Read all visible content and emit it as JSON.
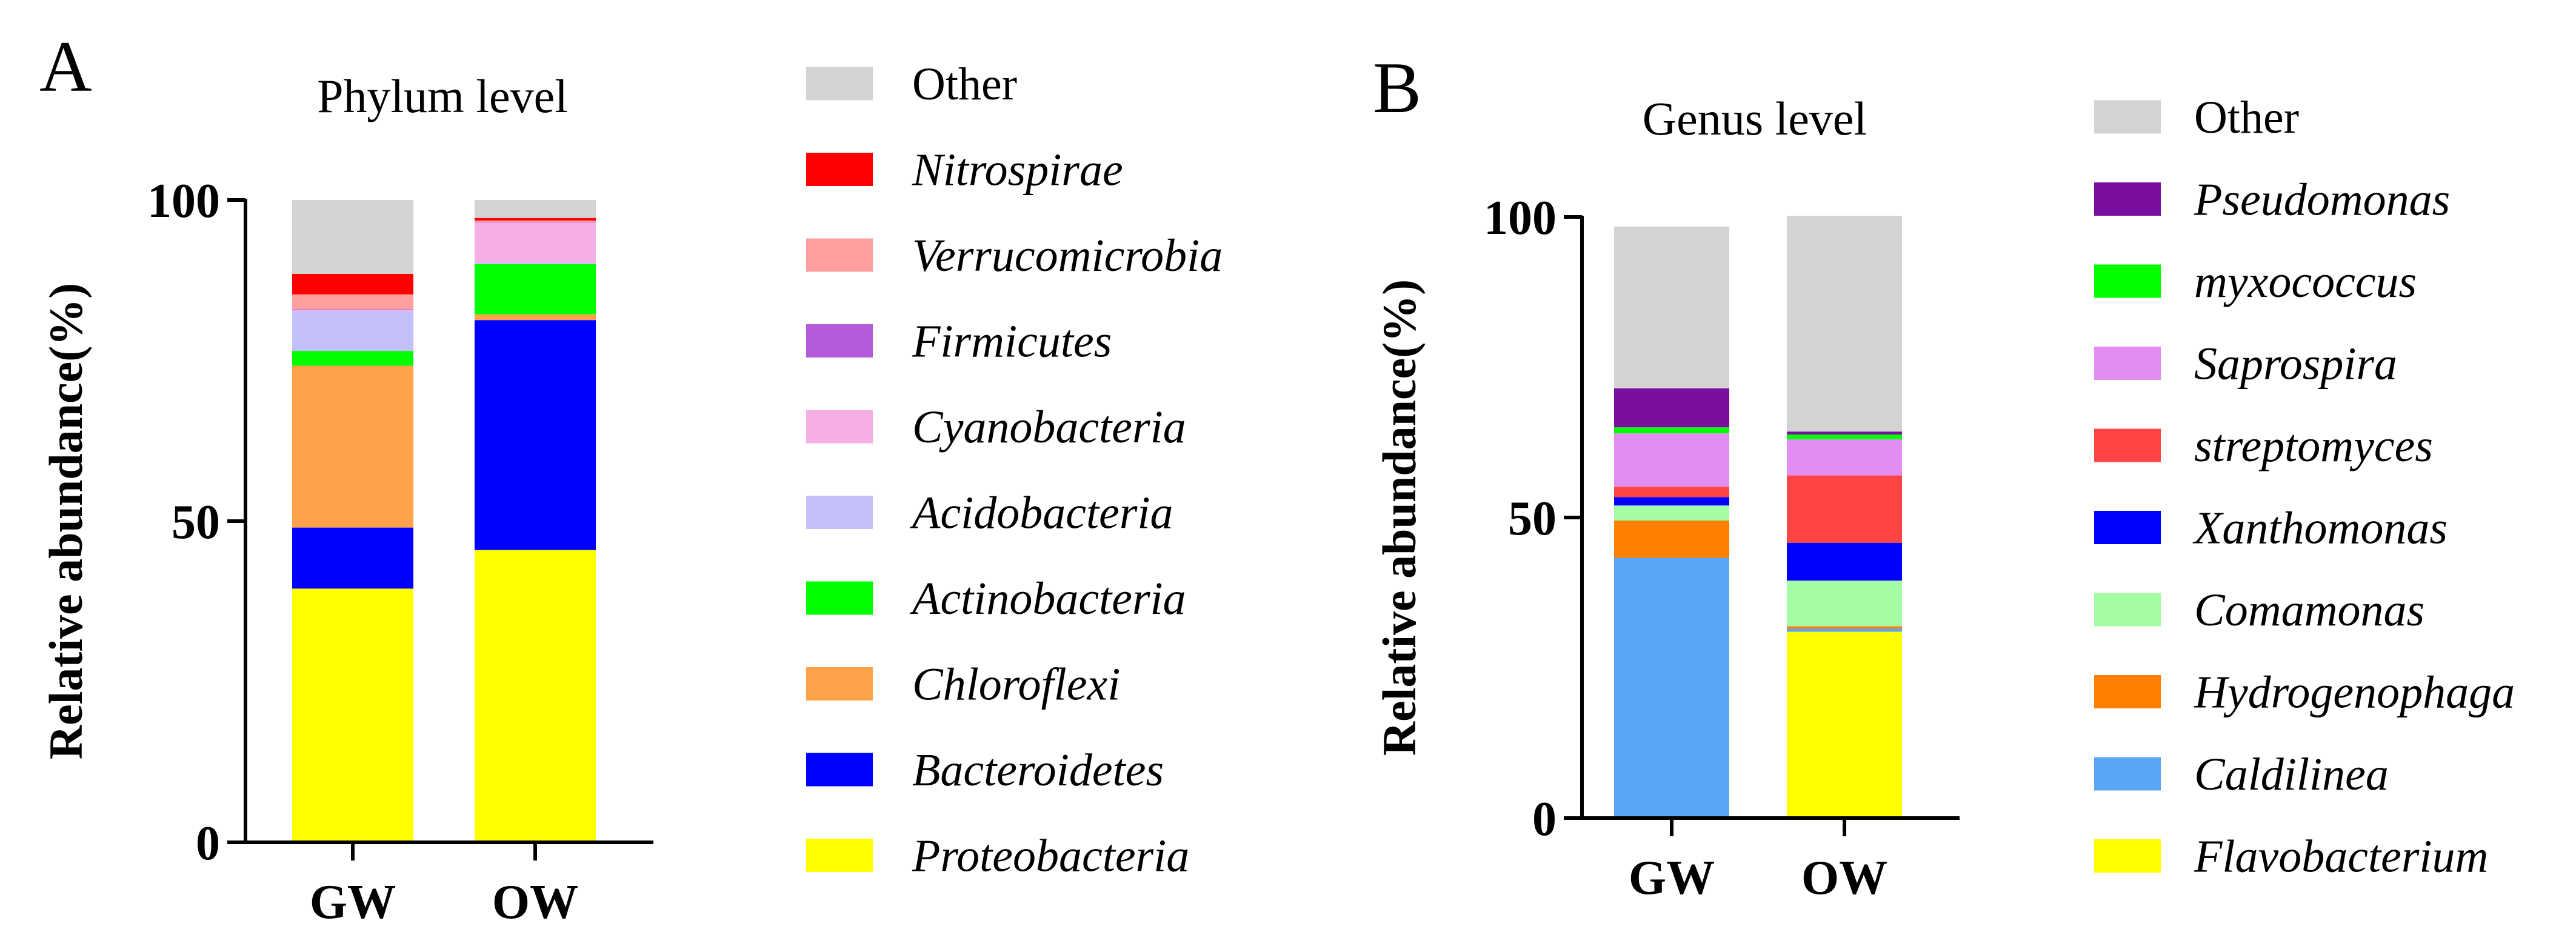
{
  "chart_data": [
    {
      "panel": "A",
      "type": "bar",
      "stacked": true,
      "title": "Phylum level",
      "xlabel": "",
      "ylabel": "Relative abundance(%)",
      "ylim": [
        0,
        100
      ],
      "yticks": [
        0,
        50,
        100
      ],
      "categories": [
        "GW",
        "OW"
      ],
      "series": [
        {
          "name": "Proteobacteria",
          "italic": true,
          "color": "#FFFF00",
          "values": [
            39.5,
            45.5
          ]
        },
        {
          "name": "Bacteroidetes",
          "italic": true,
          "color": "#0000FF",
          "values": [
            9.5,
            35.8
          ]
        },
        {
          "name": "Chloroflexi",
          "italic": true,
          "color": "#FFA24A",
          "values": [
            25.2,
            0.9
          ]
        },
        {
          "name": "Actinobacteria",
          "italic": true,
          "color": "#00FF00",
          "values": [
            2.3,
            7.8
          ]
        },
        {
          "name": "Acidobacteria",
          "italic": true,
          "color": "#C4C1FA",
          "values": [
            6.2,
            0.2
          ]
        },
        {
          "name": "Cyanobacteria",
          "italic": true,
          "color": "#F6AFE4",
          "values": [
            0.2,
            6.3
          ]
        },
        {
          "name": "Firmicutes",
          "italic": true,
          "color": "#B35AD8",
          "values": [
            0.1,
            0.1
          ]
        },
        {
          "name": "Verrucomicrobia",
          "italic": true,
          "color": "#FF9F9F",
          "values": [
            2.3,
            0.2
          ]
        },
        {
          "name": "Nitrospirae",
          "italic": true,
          "color": "#FF0000",
          "values": [
            3.2,
            0.4
          ]
        },
        {
          "name": "Other",
          "italic": false,
          "color": "#D3D3D3",
          "values": [
            11.5,
            2.8
          ]
        }
      ]
    },
    {
      "panel": "B",
      "type": "bar",
      "stacked": true,
      "title": "Genus level",
      "xlabel": "",
      "ylabel": "Relative abundance(%)",
      "ylim": [
        0,
        100
      ],
      "yticks": [
        0,
        50,
        100
      ],
      "categories": [
        "GW",
        "OW"
      ],
      "series": [
        {
          "name": "Flavobacterium",
          "italic": true,
          "color": "#FFFF00",
          "values": [
            0.3,
            31.0
          ]
        },
        {
          "name": "Caldilinea",
          "italic": true,
          "color": "#5AA5F5",
          "values": [
            43.0,
            0.5
          ]
        },
        {
          "name": "Hydrogenophaga",
          "italic": true,
          "color": "#FF7F00",
          "values": [
            6.2,
            0.4
          ]
        },
        {
          "name": "Comamonas",
          "italic": true,
          "color": "#A4FCA4",
          "values": [
            2.5,
            7.6
          ]
        },
        {
          "name": "Xanthomonas",
          "italic": true,
          "color": "#0000FF",
          "values": [
            1.4,
            6.3
          ]
        },
        {
          "name": "streptomyces",
          "italic": true,
          "color": "#FF4444",
          "values": [
            1.7,
            11.2
          ]
        },
        {
          "name": "Saprospira",
          "italic": true,
          "color": "#E38CF2",
          "values": [
            8.9,
            6.0
          ]
        },
        {
          "name": "myxococcus",
          "italic": true,
          "color": "#00FF00",
          "values": [
            1.0,
            0.8
          ]
        },
        {
          "name": "Pseudomonas",
          "italic": true,
          "color": "#7A0E9E",
          "values": [
            6.5,
            0.5
          ]
        },
        {
          "name": "Other",
          "italic": false,
          "color": "#D3D3D3",
          "values": [
            26.9,
            35.9
          ]
        }
      ]
    }
  ]
}
